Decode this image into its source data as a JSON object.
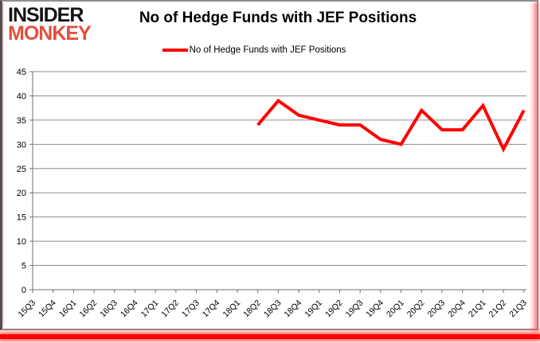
{
  "logo": {
    "line1": "INSIDER",
    "line2": "MONKEY"
  },
  "header": {
    "title": "No of Hedge Funds with JEF Positions"
  },
  "legend": {
    "label": "No of Hedge Funds with JEF Positions"
  },
  "colors": {
    "line": "#ff0000",
    "logo_accent": "#e2503c",
    "logo_main": "#141414",
    "grid": "#8c8c8c",
    "axis": "#6f6f6f",
    "axis_text": "#000000"
  },
  "chart_data": {
    "type": "line",
    "title": "No of Hedge Funds with JEF Positions",
    "xlabel": "",
    "ylabel": "",
    "categories": [
      "15Q3",
      "15Q4",
      "16Q1",
      "16Q2",
      "16Q3",
      "16Q4",
      "17Q1",
      "17Q2",
      "17Q3",
      "17Q4",
      "18Q1",
      "18Q2",
      "18Q3",
      "18Q4",
      "19Q1",
      "19Q2",
      "19Q3",
      "19Q4",
      "20Q1",
      "20Q2",
      "20Q3",
      "20Q4",
      "21Q1",
      "21Q2",
      "21Q3"
    ],
    "series": [
      {
        "name": "No of Hedge Funds with JEF Positions",
        "color": "#ff0000",
        "values": [
          null,
          null,
          null,
          null,
          null,
          null,
          null,
          null,
          null,
          null,
          null,
          34,
          39,
          36,
          35,
          34,
          34,
          31,
          30,
          37,
          33,
          33,
          38,
          29,
          37
        ]
      }
    ],
    "ylim": [
      0,
      45
    ],
    "ytick_step": 5,
    "grid": true,
    "legend_position": "top"
  }
}
